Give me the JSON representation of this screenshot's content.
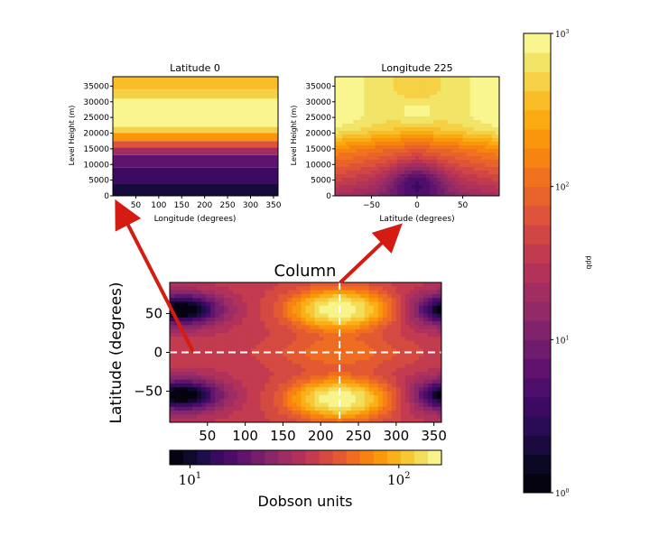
{
  "colors": {
    "inferno": [
      "#000004",
      "#0c0826",
      "#240c4f",
      "#420a68",
      "#5d126e",
      "#78206c",
      "#932b67",
      "#ad305c",
      "#c63d4d",
      "#dd513a",
      "#ed6925",
      "#f8850f",
      "#fba40a",
      "#f9c32e",
      "#f1e262",
      "#fcffa4"
    ],
    "arrow": "#d41c12",
    "dashed_line": "#ffffff"
  },
  "chart_data": [
    {
      "id": "latitude0",
      "type": "contour",
      "title": "Latitude 0",
      "xlabel": "Longitude (degrees)",
      "ylabel": "Level Height (m)",
      "xlim": [
        0,
        360
      ],
      "ylim": [
        0,
        38000
      ],
      "xticks": [
        "50",
        "100",
        "150",
        "200",
        "250",
        "300",
        "350"
      ],
      "yticks": [
        "0",
        "5000",
        "10000",
        "15000",
        "20000",
        "25000",
        "30000",
        "35000"
      ],
      "bands": [
        {
          "z_from": 0,
          "z_to": 4000,
          "log_ppb": 0.35
        },
        {
          "z_from": 4000,
          "z_to": 9000,
          "log_ppb": 0.55
        },
        {
          "z_from": 9000,
          "z_to": 13000,
          "log_ppb": 0.8
        },
        {
          "z_from": 13000,
          "z_to": 15500,
          "log_ppb": 1.3
        },
        {
          "z_from": 15500,
          "z_to": 17500,
          "log_ppb": 1.8
        },
        {
          "z_from": 17500,
          "z_to": 20000,
          "log_ppb": 2.3
        },
        {
          "z_from": 20000,
          "z_to": 22000,
          "log_ppb": 2.65
        },
        {
          "z_from": 22000,
          "z_to": 31000,
          "log_ppb": 2.95
        },
        {
          "z_from": 31000,
          "z_to": 34000,
          "log_ppb": 2.7
        },
        {
          "z_from": 34000,
          "z_to": 38000,
          "log_ppb": 2.5
        }
      ]
    },
    {
      "id": "longitude225",
      "type": "contour",
      "title": "Longitude 225",
      "xlabel": "Latitude (degrees)",
      "ylabel": "Level Height (m)",
      "xlim": [
        -90,
        90
      ],
      "ylim": [
        0,
        38000
      ],
      "xticks": [
        "−50",
        "0",
        "50"
      ],
      "yticks": [
        "0",
        "5000",
        "10000",
        "15000",
        "20000",
        "25000",
        "30000",
        "35000"
      ],
      "bubbles": [
        {
          "lat": 0,
          "height": 27000,
          "log_ppb": 2.95,
          "lat_halfwidth": 25,
          "height_halfwidth": 4000
        },
        {
          "lat": 0,
          "height": 3000,
          "log_ppb": 0.6,
          "lat_halfwidth": 28,
          "height_halfwidth": 6000
        }
      ]
    },
    {
      "id": "column",
      "type": "contour",
      "title": "Column",
      "xlabel": "",
      "ylabel": "Latitude (degrees)",
      "xlim": [
        0,
        360
      ],
      "ylim": [
        -90,
        90
      ],
      "xticks": [
        "50",
        "100",
        "150",
        "200",
        "250",
        "300",
        "350"
      ],
      "yticks": [
        "50",
        "0",
        "−50"
      ],
      "maxima_dobson": [
        {
          "lon": 225,
          "lat": 55,
          "dobson": 160
        },
        {
          "lon": 225,
          "lat": -60,
          "dobson": 160
        }
      ],
      "minima_dobson": [
        {
          "lon": 40,
          "lat": 55,
          "dobson": 18
        },
        {
          "lon": 40,
          "lat": -55,
          "dobson": 18
        },
        {
          "lon": 350,
          "lat": 55,
          "dobson": 18
        },
        {
          "lon": 350,
          "lat": -55,
          "dobson": 18
        }
      ],
      "reference_lines": {
        "lon": 225,
        "lat": 0
      }
    }
  ],
  "colorbar_dobson": {
    "label": "Dobson units",
    "range": [
      8,
      160
    ],
    "ticks": [
      {
        "base": "10",
        "exp": "1",
        "value": 10
      },
      {
        "base": "10",
        "exp": "2",
        "value": 100
      }
    ]
  },
  "colorbar_ppb": {
    "label": "ppb",
    "range": [
      1,
      1000
    ],
    "ticks": [
      {
        "base": "10",
        "exp": "0",
        "value": 1
      },
      {
        "base": "10",
        "exp": "1",
        "value": 10
      },
      {
        "base": "10",
        "exp": "2",
        "value": 100
      },
      {
        "base": "10",
        "exp": "3",
        "value": 1000
      }
    ]
  },
  "arrows": [
    {
      "from_panel": "column",
      "to_panel": "latitude0"
    },
    {
      "from_panel": "column",
      "to_panel": "longitude225"
    }
  ]
}
